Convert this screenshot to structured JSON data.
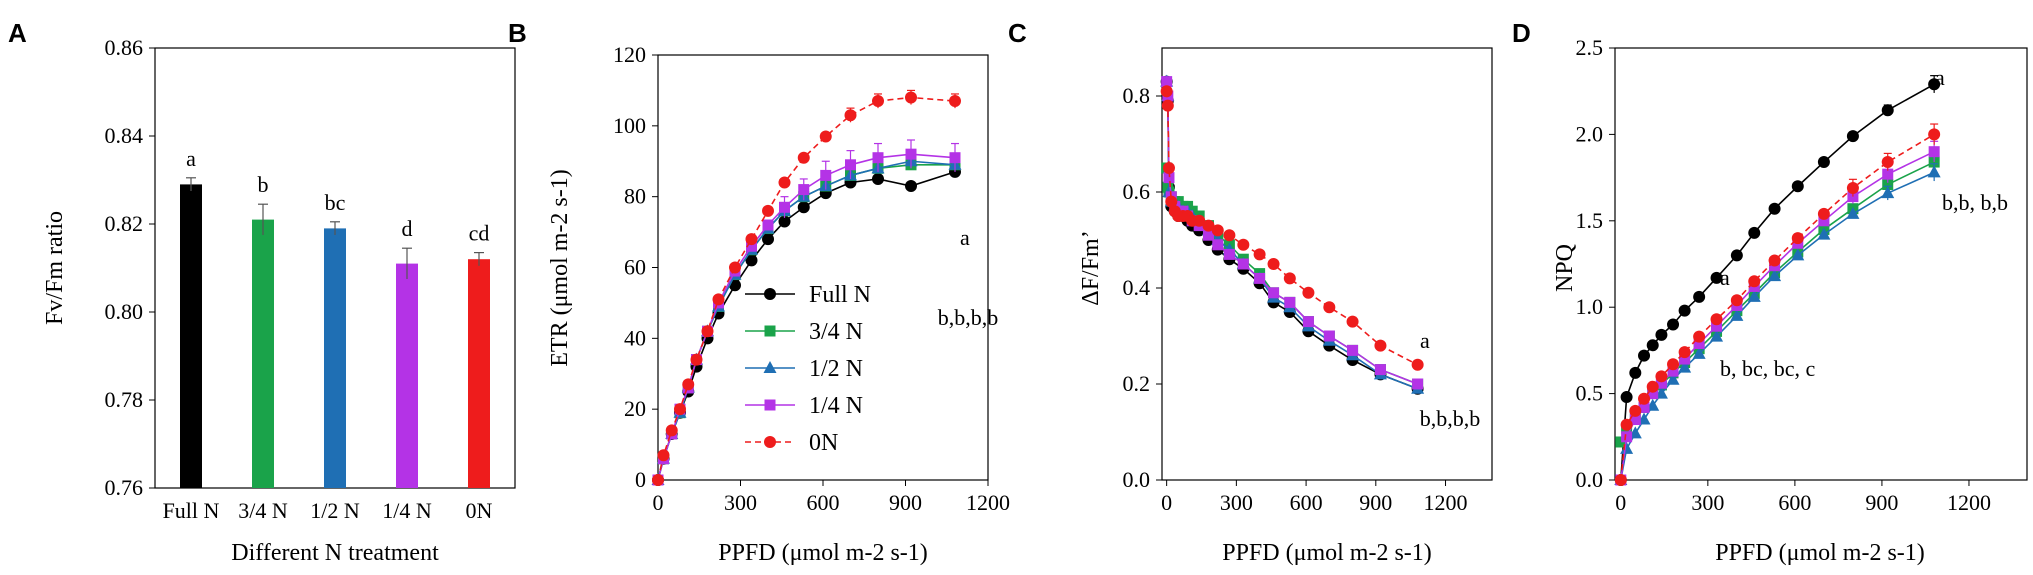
{
  "panels": {
    "a": "A",
    "b": "B",
    "c": "C",
    "d": "D"
  },
  "colors": {
    "full": "#000000",
    "n34": "#1aa34a",
    "n12": "#1f6fb4",
    "n14": "#b433e6",
    "n0": "#ee1c1c"
  },
  "labels": {
    "a_ylabel": "Fv/Fm ratio",
    "a_xlabel": "Different N treatment",
    "b_ylabel": "ETR (μmol m-2 s-1)",
    "c_ylabel": "ΔF/Fm’",
    "d_ylabel": "NPQ",
    "bcd_xlabel": "PPFD (μmol m-2 s-1)"
  },
  "legend": {
    "full": "Full N",
    "n34": "3/4 N",
    "n12": "1/2 N",
    "n14": "1/4 N",
    "n0": "0N"
  },
  "annotations": {
    "b_top": "a",
    "b_bottom": "b,b,b,b",
    "c_top": "a",
    "c_bottom": "b,b,b,b",
    "d_top": "a",
    "d_right": "b,b, b,b",
    "d_mid": "a",
    "d_low": "b, bc, bc, c"
  },
  "chart_data": [
    {
      "type": "bar",
      "panel": "A",
      "categories": [
        "Full N",
        "3/4 N",
        "1/2 N",
        "1/4 N",
        "0N"
      ],
      "values": [
        0.829,
        0.821,
        0.819,
        0.811,
        0.812
      ],
      "errors": [
        0.0015,
        0.0035,
        0.0015,
        0.0035,
        0.0015
      ],
      "letters": [
        "a",
        "b",
        "bc",
        "d",
        "cd"
      ],
      "colors": [
        "#000000",
        "#1aa34a",
        "#1f6fb4",
        "#b433e6",
        "#ee1c1c"
      ],
      "ylim": [
        0.76,
        0.86
      ],
      "yticks": [
        "0.76",
        "0.78",
        "0.80",
        "0.82",
        "0.84",
        "0.86"
      ],
      "ylabel": "Fv/Fm ratio",
      "xlabel": "Different N treatment"
    },
    {
      "type": "line",
      "panel": "B",
      "ylabel": "ETR (μmol m-2 s-1)",
      "xlabel": "PPFD (μmol m-2 s-1)",
      "xlim": [
        0,
        1200
      ],
      "ylim": [
        0,
        120
      ],
      "xticks": [
        "0",
        "300",
        "600",
        "900",
        "1200"
      ],
      "yticks": [
        "0",
        "20",
        "40",
        "60",
        "80",
        "100",
        "120"
      ],
      "x": [
        0,
        20,
        50,
        80,
        110,
        140,
        180,
        220,
        280,
        340,
        400,
        460,
        530,
        610,
        700,
        800,
        920,
        1080
      ],
      "series": [
        {
          "name": "Full N",
          "color": "#000000",
          "values": [
            0,
            6,
            13,
            19,
            25,
            32,
            40,
            47,
            55,
            62,
            68,
            73,
            77,
            81,
            84,
            85,
            83,
            87
          ],
          "errors": [],
          "dashed": false
        },
        {
          "name": "3/4 N",
          "color": "#1aa34a",
          "values": [
            0,
            6,
            13,
            19,
            26,
            34,
            42,
            49,
            58,
            65,
            71,
            76,
            80,
            83,
            86,
            88,
            89,
            89
          ],
          "errors": [],
          "dashed": false
        },
        {
          "name": "1/2 N",
          "color": "#1f6fb4",
          "values": [
            0,
            6,
            13,
            19,
            26,
            34,
            42,
            49,
            58,
            65,
            71,
            76,
            80,
            83,
            86,
            88,
            90,
            89
          ],
          "errors": [],
          "dashed": false
        },
        {
          "name": "1/4 N",
          "color": "#b433e6",
          "values": [
            0,
            6,
            13,
            20,
            26,
            34,
            42,
            50,
            59,
            66,
            72,
            77,
            82,
            86,
            89,
            91,
            92,
            91
          ],
          "errors": [
            0,
            0,
            0,
            0,
            0,
            0,
            0,
            0,
            0,
            0,
            0,
            3,
            3,
            4,
            4,
            4,
            4,
            4
          ],
          "dashed": false
        },
        {
          "name": "0N",
          "color": "#ee1c1c",
          "values": [
            0,
            7,
            14,
            20,
            27,
            34,
            42,
            51,
            60,
            68,
            76,
            84,
            91,
            97,
            103,
            107,
            108,
            107
          ],
          "errors": [
            0,
            0,
            0,
            0,
            0,
            0,
            0,
            0,
            0,
            0,
            0,
            0,
            0,
            0,
            2,
            2,
            2,
            2
          ],
          "dashed": true
        }
      ]
    },
    {
      "type": "line",
      "panel": "C",
      "ylabel": "ΔF/Fm’",
      "xlabel": "PPFD (μmol m-2 s-1)",
      "xlim": [
        -20,
        1400
      ],
      "ylim": [
        0,
        0.9
      ],
      "xticks": [
        "0",
        "300",
        "600",
        "900",
        "1200"
      ],
      "yticks": [
        "0.0",
        "0.2",
        "0.4",
        "0.6",
        "0.8"
      ],
      "x": [
        0,
        5,
        10,
        20,
        35,
        50,
        70,
        90,
        110,
        140,
        180,
        220,
        270,
        330,
        400,
        460,
        530,
        610,
        700,
        800,
        920,
        1080
      ],
      "series": [
        {
          "name": "Full N",
          "color": "#000000",
          "values": [
            0.83,
            0.79,
            0.61,
            0.57,
            0.56,
            0.55,
            0.55,
            0.54,
            0.53,
            0.52,
            0.5,
            0.48,
            0.46,
            0.44,
            0.41,
            0.37,
            0.35,
            0.31,
            0.28,
            0.25,
            0.22,
            0.19
          ],
          "dashed": false
        },
        {
          "name": "3/4 N",
          "color": "#1aa34a",
          "values": [
            0.65,
            0.61,
            0.6,
            0.59,
            0.58,
            0.58,
            0.57,
            0.57,
            0.56,
            0.55,
            0.53,
            0.51,
            0.49,
            0.46,
            0.43,
            0.39,
            0.37,
            0.33,
            0.3,
            0.27,
            0.23,
            0.2
          ],
          "dashed": false
        },
        {
          "name": "1/2 N",
          "color": "#1f6fb4",
          "values": [
            0.83,
            0.8,
            0.6,
            0.58,
            0.57,
            0.57,
            0.56,
            0.56,
            0.55,
            0.54,
            0.52,
            0.5,
            0.48,
            0.45,
            0.42,
            0.38,
            0.36,
            0.32,
            0.29,
            0.26,
            0.22,
            0.19
          ],
          "dashed": false
        },
        {
          "name": "1/4 N",
          "color": "#b433e6",
          "values": [
            0.83,
            0.8,
            0.63,
            0.59,
            0.57,
            0.56,
            0.56,
            0.55,
            0.54,
            0.53,
            0.51,
            0.49,
            0.47,
            0.45,
            0.42,
            0.39,
            0.37,
            0.33,
            0.3,
            0.27,
            0.23,
            0.2
          ],
          "dashed": false
        },
        {
          "name": "0N",
          "color": "#ee1c1c",
          "values": [
            0.81,
            0.78,
            0.65,
            0.58,
            0.56,
            0.55,
            0.55,
            0.55,
            0.54,
            0.54,
            0.53,
            0.52,
            0.51,
            0.49,
            0.47,
            0.45,
            0.42,
            0.39,
            0.36,
            0.33,
            0.28,
            0.24
          ],
          "dashed": true
        }
      ]
    },
    {
      "type": "line",
      "panel": "D",
      "ylabel": "NPQ",
      "xlabel": "PPFD (μmol m-2 s-1)",
      "xlim": [
        -20,
        1400
      ],
      "ylim": [
        0,
        2.5
      ],
      "xticks": [
        "0",
        "300",
        "600",
        "900",
        "1200"
      ],
      "yticks": [
        "0.0",
        "0.5",
        "1.0",
        "1.5",
        "2.0",
        "2.5"
      ],
      "x": [
        0,
        20,
        50,
        80,
        110,
        140,
        180,
        220,
        270,
        330,
        400,
        460,
        530,
        610,
        700,
        800,
        920,
        1080
      ],
      "series": [
        {
          "name": "Full N",
          "color": "#000000",
          "values": [
            0.0,
            0.48,
            0.62,
            0.72,
            0.78,
            0.84,
            0.9,
            0.98,
            1.06,
            1.17,
            1.3,
            1.43,
            1.57,
            1.7,
            1.84,
            1.99,
            2.14,
            2.29
          ],
          "errors": [
            0,
            0,
            0,
            0,
            0,
            0,
            0,
            0,
            0,
            0,
            0,
            0,
            0,
            0,
            0,
            0,
            0.03,
            0.05
          ],
          "dashed": false
        },
        {
          "name": "3/4 N",
          "color": "#1aa34a",
          "values": [
            0.22,
            0.3,
            0.36,
            0.42,
            0.5,
            0.55,
            0.62,
            0.68,
            0.76,
            0.86,
            0.98,
            1.08,
            1.2,
            1.32,
            1.45,
            1.57,
            1.71,
            1.84
          ],
          "errors": [
            0,
            0,
            0,
            0,
            0,
            0,
            0,
            0,
            0,
            0,
            0,
            0,
            0,
            0,
            0,
            0,
            0.04,
            0.04
          ],
          "dashed": false
        },
        {
          "name": "1/2 N",
          "color": "#1f6fb4",
          "values": [
            0.0,
            0.18,
            0.27,
            0.35,
            0.43,
            0.5,
            0.58,
            0.65,
            0.73,
            0.83,
            0.95,
            1.06,
            1.18,
            1.3,
            1.42,
            1.54,
            1.66,
            1.78
          ],
          "errors": [
            0,
            0,
            0,
            0,
            0,
            0,
            0,
            0,
            0,
            0,
            0,
            0,
            0,
            0,
            0,
            0,
            0.04,
            0.05
          ],
          "dashed": false
        },
        {
          "name": "1/4 N",
          "color": "#b433e6",
          "values": [
            0.0,
            0.25,
            0.35,
            0.42,
            0.5,
            0.56,
            0.63,
            0.7,
            0.79,
            0.89,
            1.01,
            1.12,
            1.24,
            1.37,
            1.5,
            1.64,
            1.77,
            1.9
          ],
          "errors": [
            0,
            0,
            0,
            0,
            0,
            0,
            0,
            0,
            0,
            0,
            0,
            0,
            0,
            0,
            0,
            0.04,
            0.05,
            0.06
          ],
          "dashed": false
        },
        {
          "name": "0N",
          "color": "#ee1c1c",
          "values": [
            0.0,
            0.32,
            0.4,
            0.47,
            0.54,
            0.6,
            0.67,
            0.74,
            0.83,
            0.93,
            1.04,
            1.15,
            1.27,
            1.4,
            1.54,
            1.69,
            1.84,
            2.0
          ],
          "errors": [
            0,
            0,
            0,
            0,
            0,
            0,
            0,
            0,
            0,
            0,
            0,
            0,
            0,
            0,
            0,
            0.05,
            0.05,
            0.06
          ],
          "dashed": true
        }
      ]
    }
  ]
}
